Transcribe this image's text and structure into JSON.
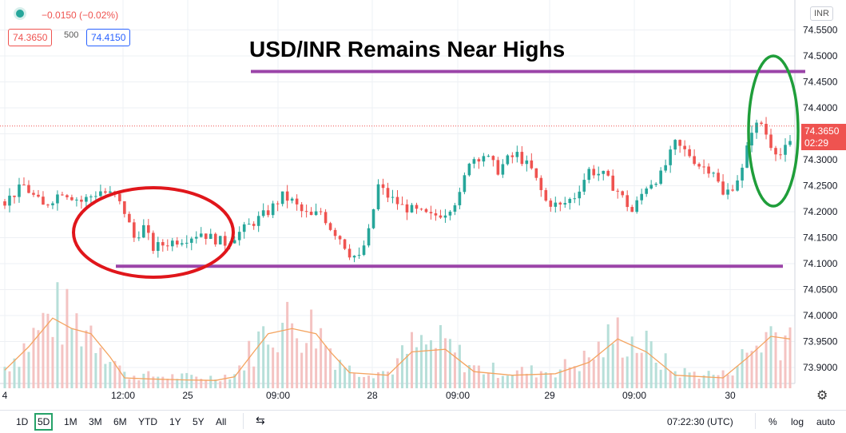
{
  "header": {
    "change_text": "−0.0150 (−0.02%)",
    "bid": "74.3650",
    "qty": "500",
    "ask": "74.4150",
    "currency": "INR"
  },
  "price_tag": {
    "price": "74.3650",
    "countdown": "02:29"
  },
  "colors": {
    "up": "#26a69a",
    "down": "#ef5350",
    "ma": "#f4a460",
    "band": "#9b44a8",
    "red_oval": "#e0161b",
    "green_oval": "#1f9e3a"
  },
  "chart_data": {
    "type": "candlestick",
    "title": "USD/INR Remains Near Highs",
    "ylim": [
      73.86,
      74.56
    ],
    "y_ticks": [
      "74.5500",
      "74.5000",
      "74.4500",
      "74.4000",
      "74.3500",
      "74.3000",
      "74.2500",
      "74.2000",
      "74.1500",
      "74.1000",
      "74.0500",
      "74.0000",
      "73.9500",
      "73.9000"
    ],
    "x_ticks": [
      "4",
      "12:00",
      "25",
      "09:00",
      "28",
      "09:00",
      "29",
      "09:00",
      "30"
    ],
    "current_price": 74.365,
    "resistance": 74.47,
    "support": 74.095,
    "close_path": [
      [
        0,
        74.22
      ],
      [
        4,
        74.25
      ],
      [
        8,
        74.21
      ],
      [
        12,
        74.24
      ],
      [
        16,
        74.22
      ],
      [
        20,
        74.24
      ],
      [
        23,
        74.23
      ],
      [
        25,
        74.2
      ],
      [
        27,
        74.15
      ],
      [
        29,
        74.17
      ],
      [
        31,
        74.13
      ],
      [
        34,
        74.14
      ],
      [
        38,
        74.15
      ],
      [
        41,
        74.16
      ],
      [
        43,
        74.15
      ],
      [
        46,
        74.14
      ],
      [
        49,
        74.16
      ],
      [
        52,
        74.18
      ],
      [
        55,
        74.2
      ],
      [
        58,
        74.23
      ],
      [
        60,
        74.22
      ],
      [
        62,
        74.2
      ],
      [
        64,
        74.19
      ],
      [
        66,
        74.2
      ],
      [
        68,
        74.17
      ],
      [
        70,
        74.15
      ],
      [
        72,
        74.12
      ],
      [
        74,
        74.11
      ],
      [
        76,
        74.16
      ],
      [
        78,
        74.25
      ],
      [
        80,
        74.23
      ],
      [
        83,
        74.21
      ],
      [
        86,
        74.2
      ],
      [
        89,
        74.19
      ],
      [
        92,
        74.2
      ],
      [
        95,
        74.23
      ],
      [
        97,
        74.3
      ],
      [
        100,
        74.31
      ],
      [
        103,
        74.28
      ],
      [
        105,
        74.3
      ],
      [
        107,
        74.31
      ],
      [
        110,
        74.28
      ],
      [
        113,
        74.22
      ],
      [
        116,
        74.21
      ],
      [
        119,
        74.23
      ],
      [
        122,
        74.28
      ],
      [
        125,
        74.27
      ],
      [
        128,
        74.24
      ],
      [
        131,
        74.2
      ],
      [
        134,
        74.25
      ],
      [
        137,
        74.27
      ],
      [
        140,
        74.33
      ],
      [
        143,
        74.31
      ],
      [
        145,
        74.29
      ],
      [
        148,
        74.28
      ],
      [
        150,
        74.23
      ],
      [
        152,
        74.25
      ],
      [
        154,
        74.28
      ],
      [
        156,
        74.36
      ],
      [
        158,
        74.37
      ],
      [
        160,
        74.33
      ],
      [
        162,
        74.31
      ],
      [
        164,
        74.33
      ]
    ],
    "volume_ma_path": [
      [
        0,
        73.895
      ],
      [
        5,
        73.94
      ],
      [
        10,
        73.995
      ],
      [
        14,
        73.975
      ],
      [
        18,
        73.965
      ],
      [
        22,
        73.92
      ],
      [
        25,
        73.88
      ],
      [
        30,
        73.878
      ],
      [
        38,
        73.876
      ],
      [
        44,
        73.875
      ],
      [
        48,
        73.882
      ],
      [
        52,
        73.93
      ],
      [
        55,
        73.965
      ],
      [
        60,
        73.975
      ],
      [
        65,
        73.965
      ],
      [
        68,
        73.93
      ],
      [
        72,
        73.89
      ],
      [
        80,
        73.885
      ],
      [
        85,
        73.93
      ],
      [
        92,
        73.935
      ],
      [
        98,
        73.892
      ],
      [
        106,
        73.885
      ],
      [
        115,
        73.888
      ],
      [
        122,
        73.91
      ],
      [
        128,
        73.955
      ],
      [
        134,
        73.93
      ],
      [
        140,
        73.885
      ],
      [
        150,
        73.88
      ],
      [
        155,
        73.918
      ],
      [
        160,
        73.96
      ],
      [
        164,
        73.955
      ]
    ],
    "annotations": [
      "red oval around range low",
      "green oval around recent spike"
    ]
  },
  "toolbar": {
    "ranges": [
      "1D",
      "5D",
      "1M",
      "3M",
      "6M",
      "YTD",
      "1Y",
      "5Y",
      "All"
    ],
    "active_range": "5D",
    "time": "07:22:30 (UTC)",
    "percent": "%",
    "log": "log",
    "auto": "auto"
  }
}
